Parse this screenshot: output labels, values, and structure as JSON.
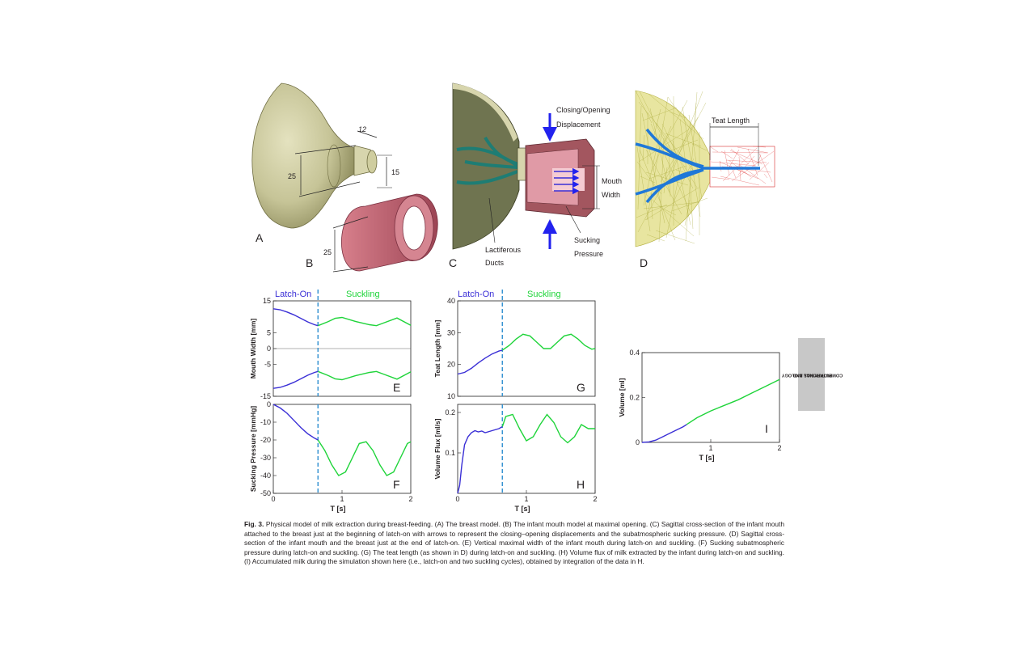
{
  "panels": {
    "A": "A",
    "B": "B",
    "C": "C",
    "D": "D",
    "dims": {
      "d12": "12",
      "d25a": "25",
      "d15": "15",
      "d25b": "25"
    },
    "c_labels": {
      "closing1": "Closing/Opening",
      "closing2": "Displacement",
      "mouth1": "Mouth",
      "mouth2": "Width",
      "sucking1": "Sucking",
      "sucking2": "Pressure",
      "lact1": "Lactiferous",
      "lact2": "Ducts"
    },
    "d_labels": {
      "teat": "Teat Length"
    }
  },
  "phases": {
    "latch": "Latch-On",
    "suck": "Suckling"
  },
  "side_tab": {
    "line1": "BIOPHYSICS AND",
    "line2": "COMPUTATIONAL BIOLOGY"
  },
  "colors": {
    "latch": "#3a2fd6",
    "suck": "#1fd43a",
    "dash": "#2f8fd0",
    "model": "#c9c79a",
    "ring": "#c0606e"
  },
  "chart_data": [
    {
      "type": "line",
      "panel": "E",
      "ylabel": "Mouth Width [mm]",
      "ylim": [
        -15,
        15
      ],
      "yticks": [
        15,
        5,
        0,
        -5,
        -15
      ],
      "xlim": [
        0,
        2
      ],
      "latch_end": 0.65,
      "series": [
        {
          "x": [
            0,
            0.1,
            0.2,
            0.3,
            0.4,
            0.5,
            0.6,
            0.65
          ],
          "y": [
            12.5,
            12.2,
            11.5,
            10.6,
            9.5,
            8.4,
            7.5,
            7.2
          ]
        },
        {
          "x": [
            0.65,
            0.8,
            0.9,
            1.0,
            1.2,
            1.4,
            1.5,
            1.6,
            1.8,
            2.0
          ],
          "y": [
            7.2,
            8.5,
            9.5,
            9.8,
            8.5,
            7.5,
            7.2,
            8.0,
            9.6,
            7.3
          ]
        },
        {
          "x": [
            0,
            0.1,
            0.2,
            0.3,
            0.4,
            0.5,
            0.6,
            0.65
          ],
          "y": [
            -12.5,
            -12.2,
            -11.5,
            -10.6,
            -9.5,
            -8.4,
            -7.5,
            -7.2
          ]
        },
        {
          "x": [
            0.65,
            0.8,
            0.9,
            1.0,
            1.2,
            1.4,
            1.5,
            1.6,
            1.8,
            2.0
          ],
          "y": [
            -7.2,
            -8.5,
            -9.5,
            -9.8,
            -8.5,
            -7.5,
            -7.2,
            -8.0,
            -9.6,
            -7.3
          ]
        }
      ],
      "letter": "E"
    },
    {
      "type": "line",
      "panel": "F",
      "ylabel": "Sucking Pressure [mmHg]",
      "xlabel": "T [s]",
      "ylim": [
        -50,
        0
      ],
      "yticks": [
        0,
        -10,
        -20,
        -30,
        -40,
        -50
      ],
      "xlim": [
        0,
        2
      ],
      "xticks": [
        0,
        1,
        2
      ],
      "latch_end": 0.65,
      "series": [
        {
          "x": [
            0,
            0.1,
            0.2,
            0.3,
            0.4,
            0.5,
            0.6,
            0.65
          ],
          "y": [
            0,
            -2,
            -5,
            -9,
            -13,
            -16.5,
            -19,
            -20
          ]
        },
        {
          "x": [
            0.65,
            0.75,
            0.85,
            0.95,
            1.05,
            1.15,
            1.25,
            1.35,
            1.45,
            1.55,
            1.65,
            1.75,
            1.85,
            1.95,
            2.0
          ],
          "y": [
            -20,
            -26,
            -34,
            -40,
            -38,
            -30,
            -22,
            -21,
            -26,
            -34,
            -40,
            -38,
            -30,
            -22,
            -21
          ]
        }
      ],
      "letter": "F"
    },
    {
      "type": "line",
      "panel": "G",
      "ylabel": "Teat Length [mm]",
      "ylim": [
        10,
        40
      ],
      "yticks": [
        40,
        30,
        20,
        10
      ],
      "xlim": [
        0,
        2
      ],
      "latch_end": 0.65,
      "series": [
        {
          "x": [
            0,
            0.1,
            0.2,
            0.3,
            0.4,
            0.5,
            0.6,
            0.65
          ],
          "y": [
            17,
            17.5,
            18.8,
            20.5,
            22,
            23.3,
            24.2,
            24.5
          ]
        },
        {
          "x": [
            0.65,
            0.75,
            0.85,
            0.95,
            1.05,
            1.15,
            1.25,
            1.35,
            1.45,
            1.55,
            1.65,
            1.75,
            1.85,
            1.95,
            2.0
          ],
          "y": [
            24.5,
            26,
            28,
            29.5,
            29,
            27,
            25,
            25,
            27,
            29,
            29.5,
            28,
            26,
            24.8,
            25
          ]
        }
      ],
      "letter": "G"
    },
    {
      "type": "line",
      "panel": "H",
      "ylabel": "Volume Flux [ml/s]",
      "xlabel": "T [s]",
      "ylim": [
        0,
        0.22
      ],
      "yticks": [
        0.2,
        0.1
      ],
      "xlim": [
        0,
        2
      ],
      "xticks": [
        0,
        1,
        2
      ],
      "latch_end": 0.65,
      "series": [
        {
          "x": [
            0,
            0.03,
            0.06,
            0.1,
            0.15,
            0.2,
            0.25,
            0.3,
            0.35,
            0.4,
            0.5,
            0.6,
            0.65
          ],
          "y": [
            0,
            0.02,
            0.07,
            0.12,
            0.14,
            0.15,
            0.155,
            0.152,
            0.154,
            0.15,
            0.155,
            0.16,
            0.165
          ]
        },
        {
          "x": [
            0.65,
            0.7,
            0.8,
            0.9,
            1.0,
            1.1,
            1.2,
            1.3,
            1.4,
            1.5,
            1.6,
            1.7,
            1.8,
            1.9,
            2.0
          ],
          "y": [
            0.165,
            0.19,
            0.195,
            0.16,
            0.13,
            0.14,
            0.17,
            0.195,
            0.175,
            0.14,
            0.125,
            0.14,
            0.17,
            0.16,
            0.16
          ]
        }
      ],
      "letter": "H"
    },
    {
      "type": "line",
      "panel": "I",
      "ylabel": "Volume [ml]",
      "xlabel": "T [s]",
      "ylim": [
        0,
        0.4
      ],
      "yticks": [
        0.4,
        0.2,
        0
      ],
      "xlim": [
        0,
        2
      ],
      "xticks": [
        1,
        2
      ],
      "series": [
        {
          "x": [
            0,
            0.1,
            0.2,
            0.3,
            0.4,
            0.5,
            0.6,
            0.65
          ],
          "y": [
            0,
            0.002,
            0.01,
            0.025,
            0.04,
            0.055,
            0.07,
            0.08
          ]
        },
        {
          "x": [
            0.65,
            0.8,
            1.0,
            1.2,
            1.4,
            1.6,
            1.8,
            2.0
          ],
          "y": [
            0.08,
            0.11,
            0.14,
            0.165,
            0.19,
            0.22,
            0.25,
            0.28
          ]
        }
      ],
      "letter": "I"
    }
  ],
  "caption": {
    "label": "Fig. 3.",
    "text": "Physical model of milk extraction during breast-feeding. (A) The breast model. (B) The infant mouth model at maximal opening. (C) Sagittal cross-section of the infant mouth attached to the breast just at the beginning of latch-on with arrows to represent the closing–opening displacements and the subatmospheric sucking pressure. (D) Sagittal cross-section of the infant mouth and the breast just at the end of latch-on. (E) Vertical maximal width of the infant mouth during latch-on and suckling. (F) Sucking subatmospheric pressure during latch-on and suckling. (G) The teat length (as shown in D) during latch-on and suckling. (H) Volume flux of milk extracted by the infant during latch-on and suckling. (I) Accumulated milk during the simulation shown here (i.e., latch-on and two suckling cycles), obtained by integration of the data in H."
  }
}
